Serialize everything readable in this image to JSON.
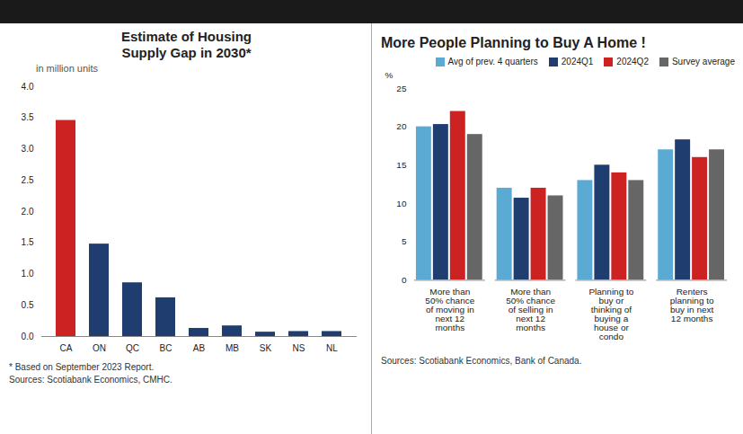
{
  "chart_data": [
    {
      "type": "bar",
      "title": "Estimate of Housing\nSupply Gap in 2030*",
      "subtitle": "in million units",
      "categories": [
        "CA",
        "ON",
        "QC",
        "BC",
        "AB",
        "MB",
        "SK",
        "NS",
        "NL"
      ],
      "values": [
        3.46,
        1.48,
        0.86,
        0.62,
        0.13,
        0.17,
        0.07,
        0.08,
        0.08
      ],
      "colors": [
        "#cc2222",
        "#1f3d6e",
        "#1f3d6e",
        "#1f3d6e",
        "#1f3d6e",
        "#1f3d6e",
        "#1f3d6e",
        "#1f3d6e",
        "#1f3d6e"
      ],
      "ylim": [
        0,
        4.0
      ],
      "yticks": [
        {
          "value": 0,
          "label": "0.0"
        },
        0.5,
        {
          "value": 1,
          "label": "1.0"
        },
        1.5,
        {
          "value": 2,
          "label": "2.0"
        },
        2.5,
        {
          "value": 3,
          "label": "3.0"
        },
        3.5,
        {
          "value": 4,
          "label": "4.0"
        }
      ],
      "grid": false,
      "annotations": [
        "* Based on September 2023 Report.",
        "Sources: Scotiabank Economics, CMHC."
      ]
    },
    {
      "type": "bar",
      "title": "More People Planning to Buy A Home !",
      "ylabel": "%",
      "categories": [
        "More than\n50% chance\nof moving in\nnext 12\nmonths",
        "More than\n50% chance\nof selling in\nnext 12\nmonths",
        "Planning to\nbuy or\nthinking of\nbuying a\nhouse or\ncondo",
        "Renters\nplanning to\nbuy in next\n12 months"
      ],
      "series": [
        {
          "name": "Avg of prev. 4 quarters",
          "color": "#5baad4",
          "values": [
            20.0,
            12.0,
            13.0,
            17.0
          ]
        },
        {
          "name": "2024Q1",
          "color": "#1f3d6e",
          "values": [
            20.3,
            10.7,
            15.0,
            18.3
          ]
        },
        {
          "name": "2024Q2",
          "color": "#cc2222",
          "values": [
            22.0,
            12.0,
            14.0,
            16.0
          ]
        },
        {
          "name": "Survey average",
          "color": "#666666",
          "values": [
            19.0,
            11.0,
            13.0,
            17.0
          ]
        }
      ],
      "ylim": [
        0,
        25
      ],
      "yticks": [
        0,
        5,
        10,
        15,
        20,
        25
      ],
      "grid": false,
      "legend": "upper right",
      "annotations": [
        "Sources: Scotiabank Economics, Bank of Canada."
      ]
    }
  ]
}
